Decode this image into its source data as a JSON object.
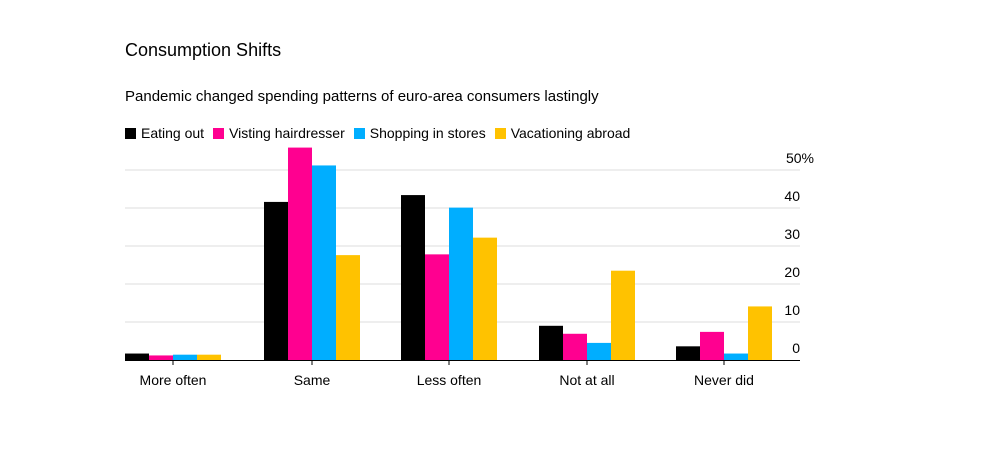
{
  "chart_data": {
    "type": "bar",
    "title": "Consumption Shifts",
    "subtitle": "Pandemic changed spending patterns of euro-area consumers lastingly",
    "xlabel": "",
    "ylabel": "",
    "categories": [
      "More often",
      "Same",
      "Less often",
      "Not at all",
      "Never did"
    ],
    "series": [
      {
        "name": "Eating out",
        "color": "#000000",
        "values": [
          1.7,
          41.6,
          43.4,
          9.0,
          3.6
        ]
      },
      {
        "name": "Visting hairdresser",
        "color": "#ff0090",
        "values": [
          1.2,
          55.9,
          27.8,
          6.9,
          7.4
        ]
      },
      {
        "name": "Shopping in stores",
        "color": "#00aeff",
        "values": [
          1.4,
          51.2,
          40.1,
          4.5,
          1.7
        ]
      },
      {
        "name": "Vacationing abroad",
        "color": "#ffc200",
        "values": [
          1.4,
          27.6,
          32.2,
          23.5,
          14.1
        ]
      }
    ],
    "ylim": [
      0,
      50
    ],
    "yticks": [
      0,
      10,
      20,
      30,
      40,
      50
    ],
    "ytick_labels": [
      "0",
      "10",
      "20",
      "30",
      "40",
      "50%"
    ],
    "yaxis_position": "right",
    "grid": true,
    "legend_position": "top-left"
  }
}
